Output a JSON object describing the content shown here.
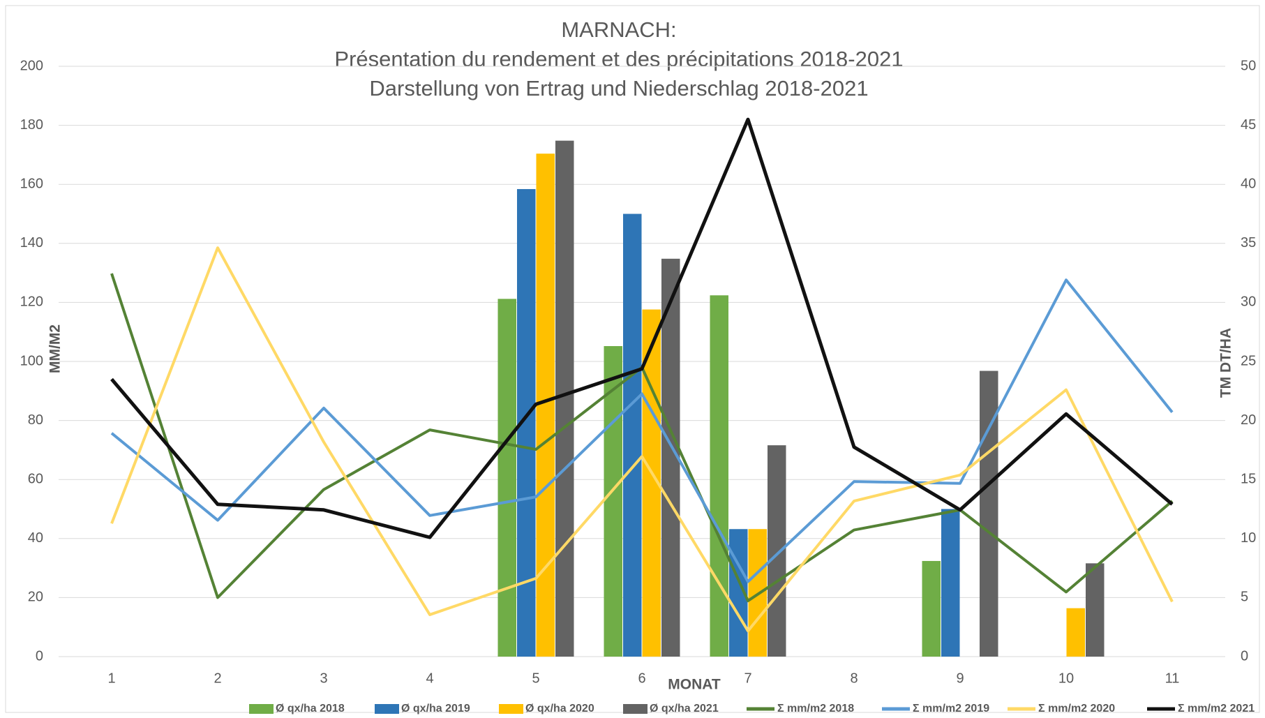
{
  "chart_data": {
    "type": "bar-line",
    "title": [
      "MARNACH:",
      "Présentation du rendement et des précipitations 2018-2021",
      "Darstellung von Ertrag und Niederschlag 2018-2021"
    ],
    "x_label": "MONAT",
    "y_label": "MM/M2",
    "y2_label": "TM DT/HA",
    "categories": [
      "1",
      "2",
      "3",
      "4",
      "5",
      "6",
      "7",
      "8",
      "9",
      "10",
      "11"
    ],
    "ylim": [
      0,
      200
    ],
    "yticks": [
      0,
      20,
      40,
      60,
      80,
      100,
      120,
      140,
      160,
      180,
      200
    ],
    "y2lim": [
      0,
      50
    ],
    "y2ticks": [
      0,
      5,
      10,
      15,
      20,
      25,
      30,
      35,
      40,
      45,
      50
    ],
    "grid": true,
    "series": [
      {
        "name": "Ø qx/ha 2018",
        "kind": "bar",
        "axis": "y2",
        "color": "#70ad47",
        "values": [
          null,
          null,
          null,
          null,
          30.3,
          26.3,
          30.6,
          null,
          8.1,
          null,
          null
        ]
      },
      {
        "name": "Ø qx/ha 2019",
        "kind": "bar",
        "axis": "y2",
        "color": "#2e75b6",
        "values": [
          null,
          null,
          null,
          null,
          39.6,
          37.5,
          10.8,
          null,
          12.5,
          null,
          null
        ]
      },
      {
        "name": "Ø qx/ha 2020",
        "kind": "bar",
        "axis": "y2",
        "color": "#ffc000",
        "values": [
          null,
          null,
          null,
          null,
          42.6,
          29.4,
          10.8,
          null,
          null,
          4.1,
          null
        ]
      },
      {
        "name": "Ø qx/ha 2021",
        "kind": "bar",
        "axis": "y2",
        "color": "#636363",
        "values": [
          null,
          null,
          null,
          null,
          43.7,
          33.7,
          17.9,
          null,
          24.2,
          7.9,
          null
        ]
      },
      {
        "name": "Σ mm/m2 2018",
        "kind": "line",
        "color": "#548235",
        "values": [
          129.8,
          20,
          56.6,
          76.8,
          70.2,
          98,
          18.9,
          42.9,
          49.7,
          21.9,
          52.7
        ]
      },
      {
        "name": "Σ mm/m2 2019",
        "kind": "line",
        "color": "#5b9bd5",
        "values": [
          75.7,
          46.2,
          84.2,
          47.8,
          54.1,
          89,
          25.4,
          59.3,
          58.7,
          127.6,
          82.8
        ]
      },
      {
        "name": "Σ mm/m2 2020",
        "kind": "line",
        "color": "#ffd966",
        "values": [
          45.1,
          138.5,
          72.7,
          14.2,
          26.5,
          67.8,
          8.7,
          52.7,
          61.5,
          90.4,
          18.6
        ]
      },
      {
        "name": "Σ mm/m2 2021",
        "kind": "line",
        "color": "#111111",
        "values": [
          94,
          51.6,
          49.7,
          40.4,
          85.5,
          97.5,
          182,
          71,
          49.7,
          82.2,
          51.6
        ]
      }
    ]
  }
}
